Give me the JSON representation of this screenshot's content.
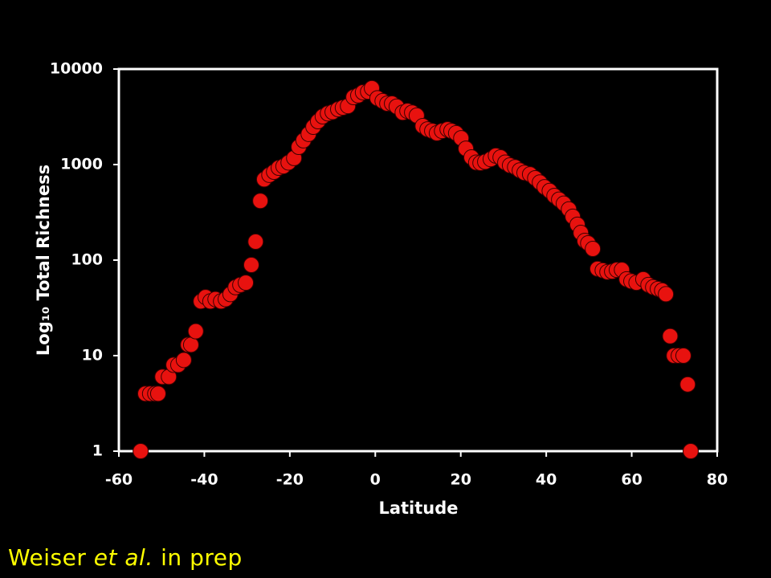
{
  "chart_data": {
    "type": "scatter",
    "x_label": "Latitude",
    "y_label": "Log₁₀ Total Richness",
    "xlim": [
      -60,
      80
    ],
    "xticks": [
      -60,
      -40,
      -20,
      0,
      20,
      40,
      60,
      80
    ],
    "ylim": [
      1,
      10000
    ],
    "yticks": [
      1,
      10,
      100,
      1000,
      10000
    ],
    "log_y": true,
    "grid": false,
    "x": [
      -54.9,
      -53.8,
      -52.7,
      -51.5,
      -50.8,
      -49.8,
      -48.3,
      -47.2,
      -46.1,
      -44.8,
      -43.8,
      -43.1,
      -42,
      -40.8,
      -39.7,
      -38.6,
      -37.4,
      -36.1,
      -35,
      -33.9,
      -32.7,
      -31.6,
      -30.3,
      -29,
      -28,
      -26.9,
      -26,
      -24.8,
      -23.7,
      -22.6,
      -21.5,
      -20.3,
      -19,
      -17.9,
      -16.8,
      -15.6,
      -14.5,
      -13.4,
      -12.3,
      -11.1,
      -10,
      -8.7,
      -7.6,
      -6.4,
      -5.1,
      -4,
      -2.9,
      -1.7,
      -0.8,
      0.5,
      1.7,
      2.8,
      3.9,
      5,
      6.4,
      7.5,
      8.6,
      9.7,
      11.1,
      12.2,
      13.3,
      14.4,
      15.6,
      16.9,
      17.8,
      18.9,
      20.1,
      21.2,
      22.5,
      23.6,
      24.6,
      25.7,
      27,
      28.2,
      29.3,
      30.4,
      31.5,
      32.7,
      33.8,
      34.9,
      36.2,
      37.4,
      38.5,
      39.6,
      40.8,
      41.9,
      43,
      44.1,
      45.3,
      46.2,
      47.3,
      48.1,
      49,
      49.8,
      50.9,
      52,
      53.2,
      54.3,
      55.4,
      56.5,
      57.7,
      58.8,
      59.9,
      61.1,
      62.7,
      63.9,
      65,
      66.1,
      67.1,
      68,
      69,
      69.9,
      71,
      72.1,
      73.1,
      73.8
    ],
    "series": [
      {
        "color": "#e8120f",
        "values": [
          1,
          4,
          4,
          4,
          4,
          6,
          6,
          8,
          8,
          9,
          13,
          13,
          18,
          37,
          41,
          37,
          39,
          37,
          39,
          44,
          52,
          55,
          58,
          89,
          156,
          417,
          700,
          780,
          840,
          925,
          960,
          1050,
          1170,
          1530,
          1790,
          2090,
          2480,
          2840,
          3190,
          3430,
          3550,
          3800,
          3950,
          4100,
          5080,
          5300,
          5700,
          5800,
          6300,
          4950,
          4620,
          4350,
          4350,
          4050,
          3500,
          3650,
          3500,
          3260,
          2530,
          2340,
          2250,
          2130,
          2250,
          2340,
          2250,
          2130,
          1890,
          1470,
          1190,
          1050,
          1040,
          1070,
          1140,
          1240,
          1190,
          1050,
          980,
          940,
          870,
          820,
          790,
          720,
          650,
          580,
          530,
          470,
          430,
          390,
          340,
          285,
          235,
          193,
          159,
          150,
          131,
          81,
          78,
          75,
          76,
          79,
          79,
          63,
          60,
          58,
          63,
          55,
          52,
          50,
          48,
          44,
          16,
          10,
          10,
          10,
          5,
          1
        ]
      }
    ]
  },
  "caption": {
    "author": "Weiser",
    "etal": "et al.",
    "rest": "in prep"
  }
}
